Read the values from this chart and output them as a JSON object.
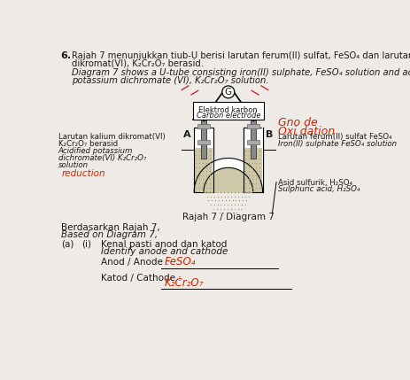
{
  "bg_color": "#eeebe6",
  "text_color": "#1a1a1a",
  "red_color": "#cc2200",
  "diagram_label": "Rajah 7 / Diagram 7",
  "label_G": "G",
  "label_carbon_malay": "Elektrod karbon",
  "label_carbon_english": "Carbon electrode",
  "label_A": "A",
  "label_B": "B",
  "label_reduction": "reduction",
  "label_based_malay": "Berdasarkan Rajah 7,",
  "label_based_english": "Based on Diagram 7,",
  "label_a_i_malay": "Kenal pasti anod dan katod",
  "label_a_i_english": "Identify anode and cathode",
  "label_anode": "Anod / Anode :",
  "label_cathode": "Katod / Cathode :",
  "answer_anode": "FeSO₄",
  "answer_cathode": "K₂Cr₂O₇"
}
